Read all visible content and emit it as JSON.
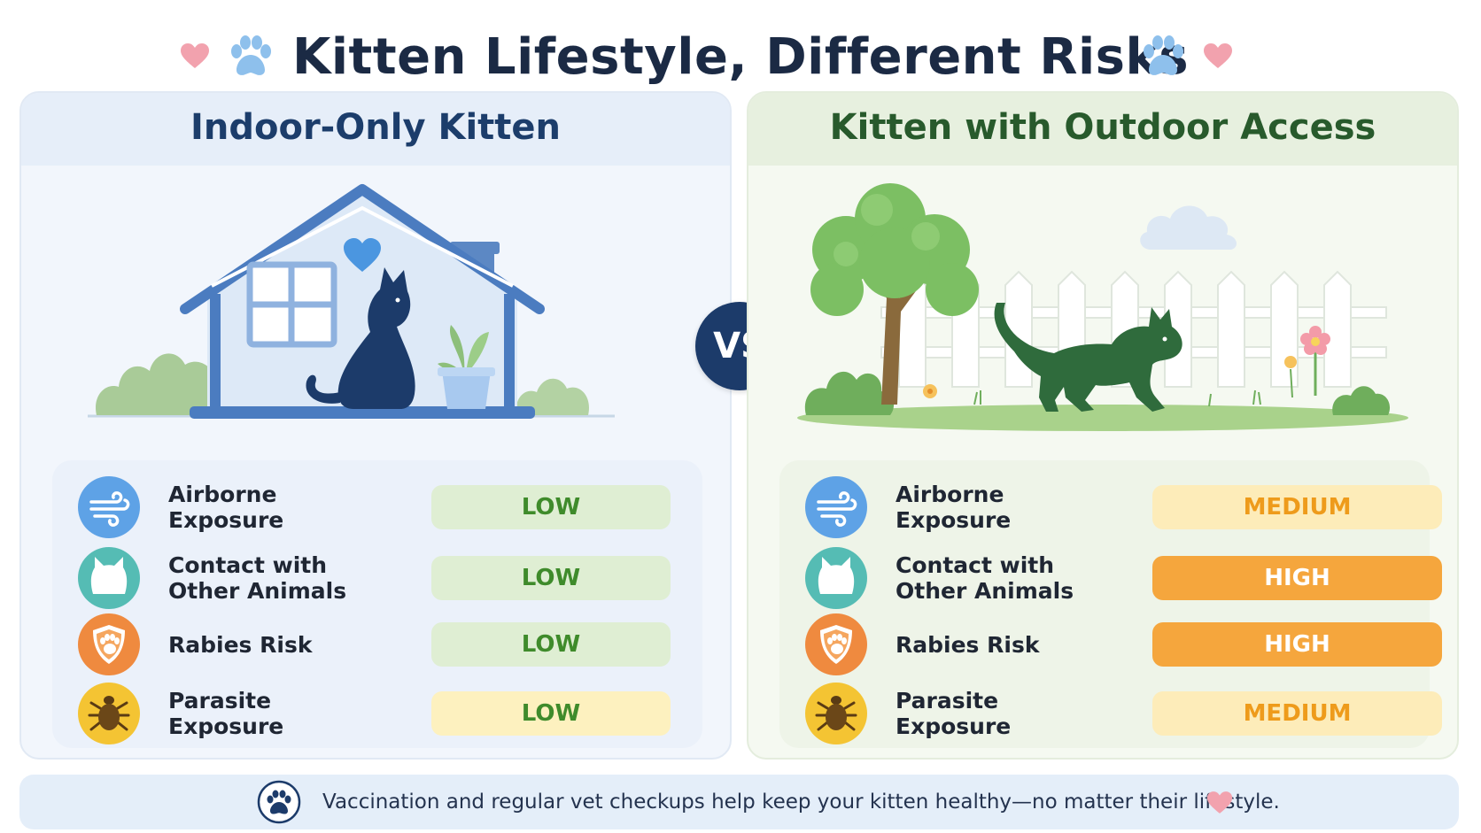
{
  "title": "Kitten Lifestyle, Different Risks",
  "vs_label": "VS",
  "indoor": {
    "title": "Indoor-Only Kitten",
    "risks": [
      {
        "label": "Airborne Exposure",
        "icon": "wind-icon",
        "level": "LOW"
      },
      {
        "label": "Contact with\nOther Animals",
        "icon": "cat-face-icon",
        "level": "LOW"
      },
      {
        "label": "Rabies Risk",
        "icon": "shield-paw-icon",
        "level": "LOW"
      },
      {
        "label": "Parasite Exposure",
        "icon": "tick-bug-icon",
        "level": "LOW"
      }
    ]
  },
  "outdoor": {
    "title": "Kitten with Outdoor Access",
    "risks": [
      {
        "label": "Airborne Exposure",
        "icon": "wind-icon",
        "level": "MEDIUM"
      },
      {
        "label": "Contact with\nOther Animals",
        "icon": "cat-face-icon",
        "level": "HIGH"
      },
      {
        "label": "Rabies Risk",
        "icon": "shield-paw-icon",
        "level": "HIGH"
      },
      {
        "label": "Parasite Exposure",
        "icon": "tick-bug-icon",
        "level": "MEDIUM"
      }
    ]
  },
  "footer": {
    "text": "Vaccination and regular vet checkups help keep your kitten healthy—no matter their lifestyle."
  },
  "colors": {
    "title": "#1b2a44",
    "indoor_accent": "#1c3d6b",
    "outdoor_accent": "#285a2c",
    "low": "#3f8b2b",
    "medium": "#ee9b1b",
    "high": "#f5a63d",
    "vs_badge": "#1c3b6a"
  }
}
